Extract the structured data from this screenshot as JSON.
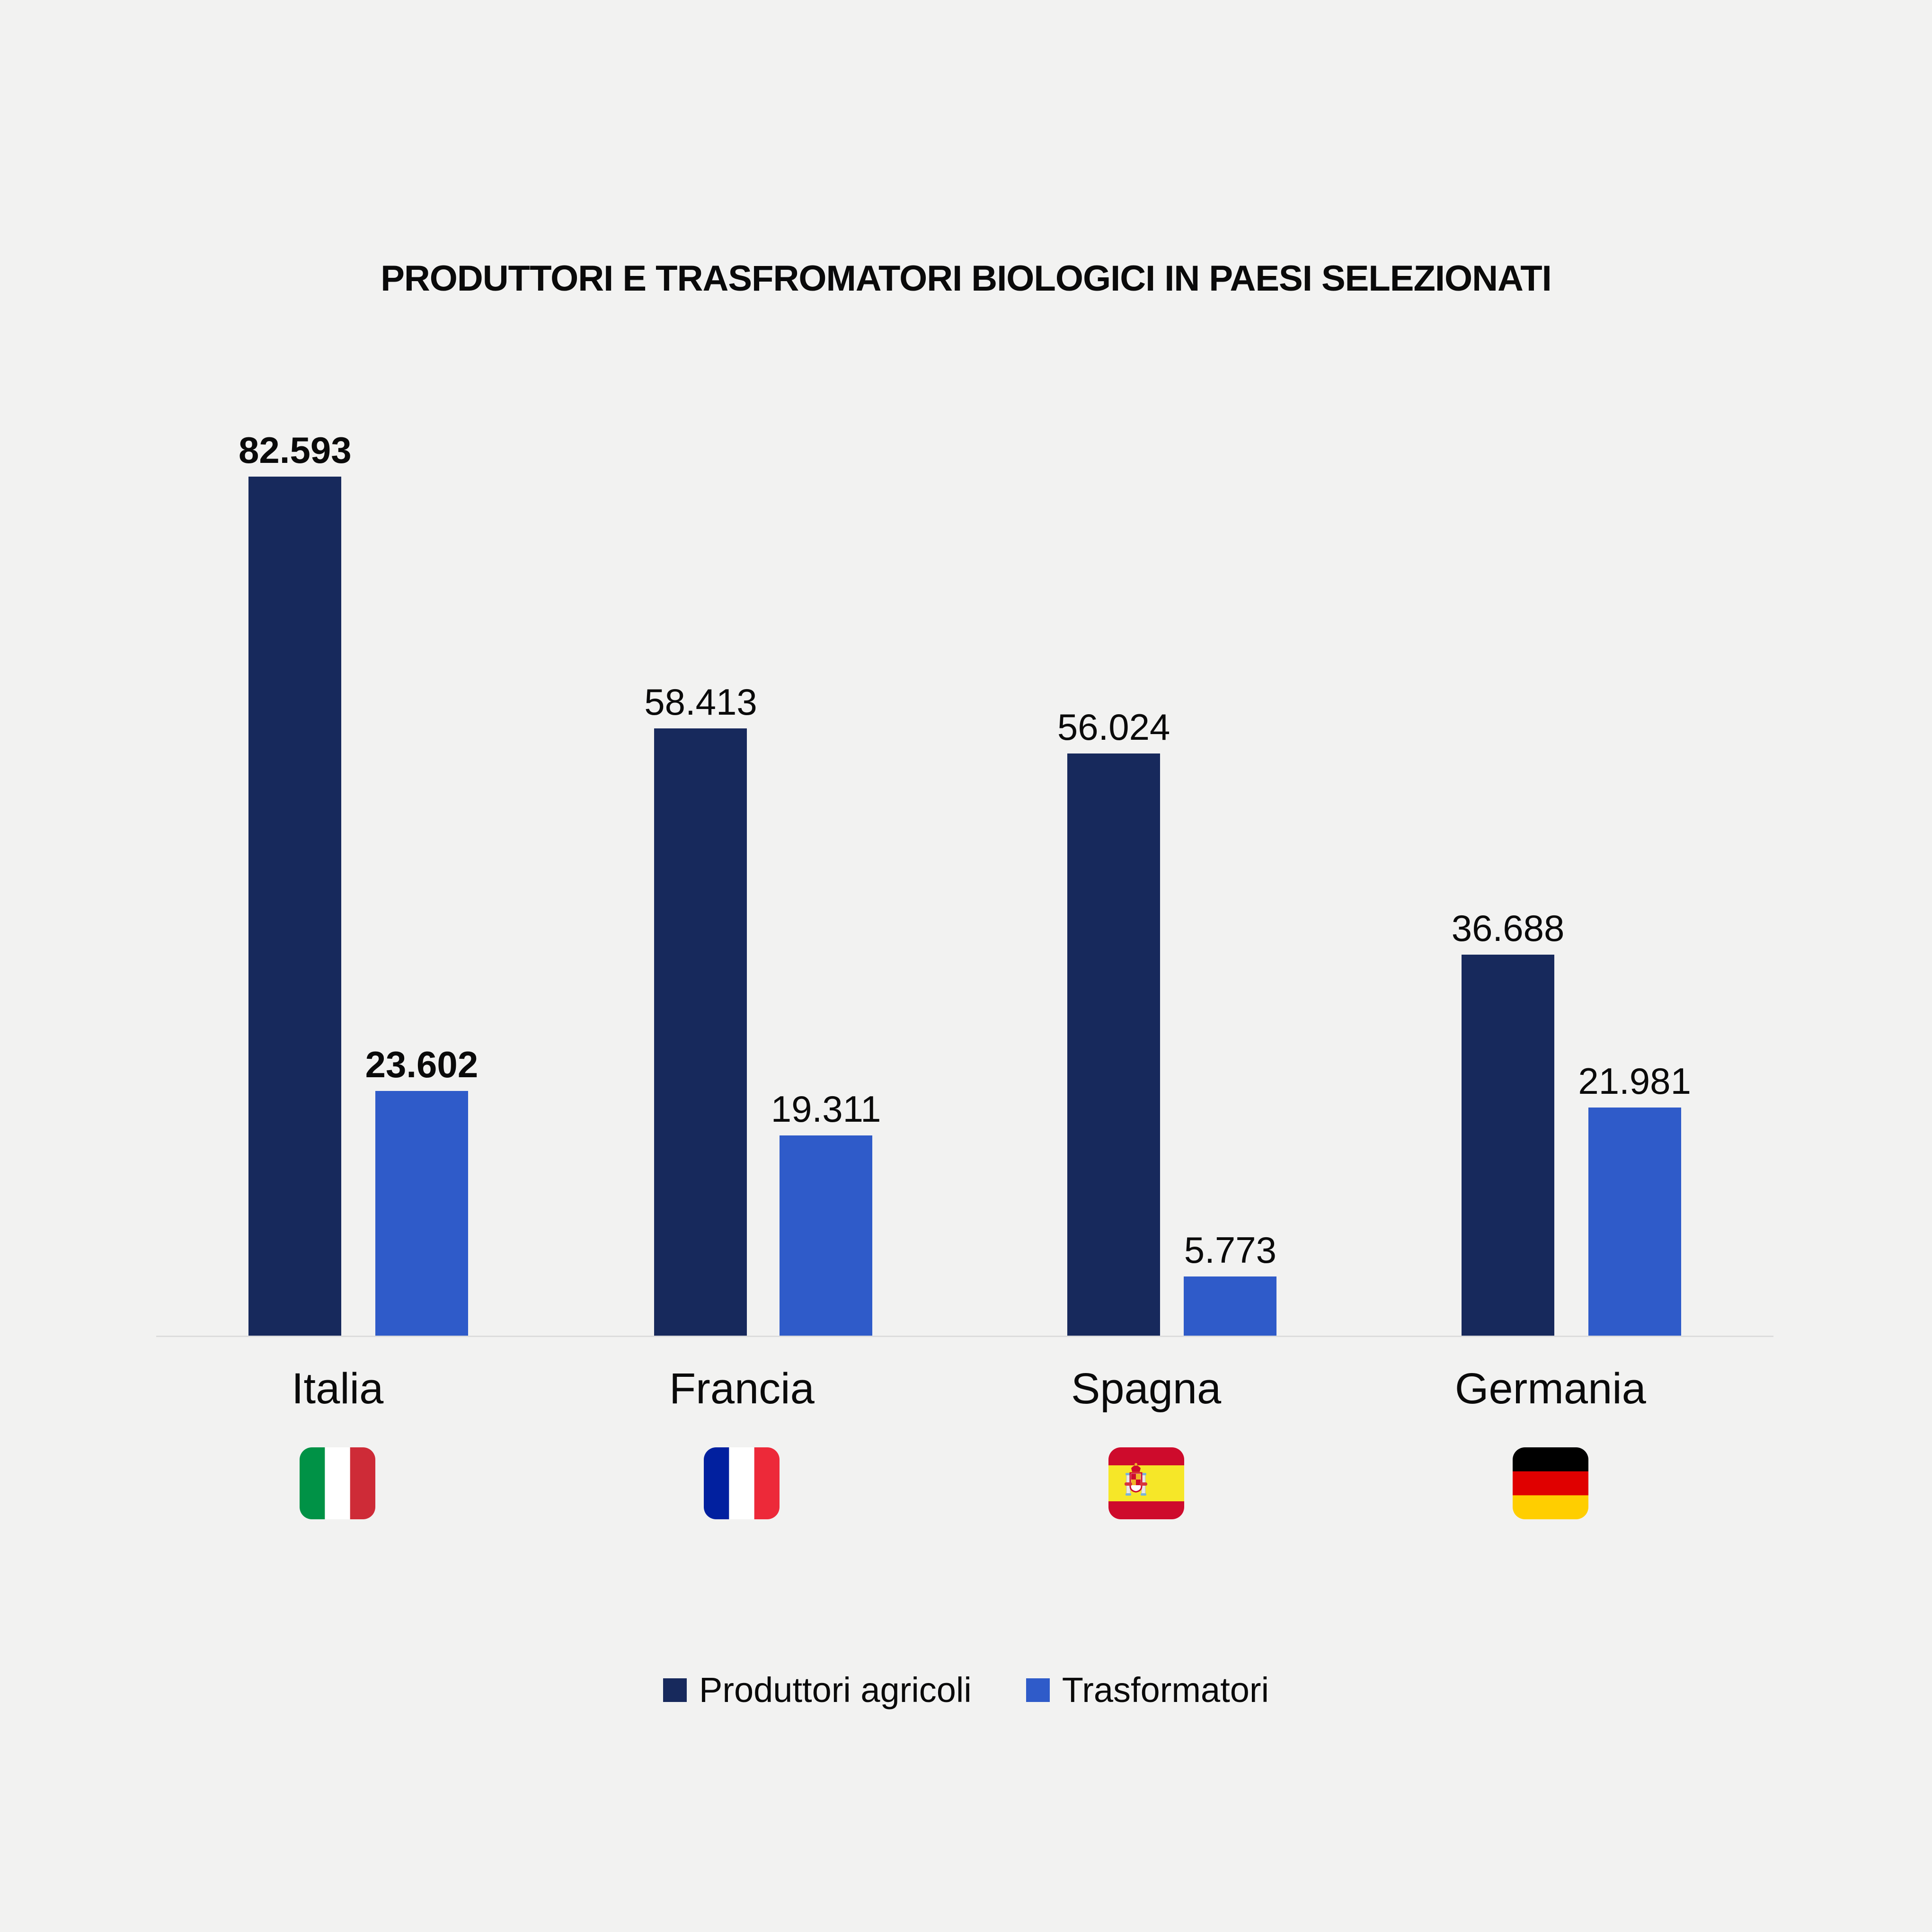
{
  "title": "PRODUTTORI E TRASFROMATORI BIOLOGICI IN PAESI SELEZIONATI",
  "background_color": "#f2f2f1",
  "baseline_color": "#dcdcdc",
  "text_color": "#0a0a0a",
  "chart_data": {
    "type": "bar",
    "title": "PRODUTTORI E TRASFROMATORI BIOLOGICI IN PAESI SELEZIONATI",
    "categories": [
      "Italia",
      "Francia",
      "Spagna",
      "Germania"
    ],
    "series": [
      {
        "name": "Produttori agricoli",
        "color": "#17295c",
        "values": [
          82593,
          58413,
          56024,
          36688
        ],
        "labels": [
          "82.593",
          "58.413",
          "56.024",
          "36.688"
        ]
      },
      {
        "name": "Trasformatori",
        "color": "#2f5bc9",
        "values": [
          23602,
          19311,
          5773,
          21981
        ],
        "labels": [
          "23.602",
          "19.311",
          "5.773",
          "21.981"
        ]
      }
    ],
    "emphasized_category": "Italia",
    "xlabel": "",
    "ylabel": "",
    "ylim": [
      0,
      82593
    ],
    "grid": false,
    "legend_position": "bottom",
    "value_labels_shown": true
  },
  "flags": [
    {
      "country": "Italia",
      "layout": "vertical",
      "stripes": [
        "#009246",
        "#ffffff",
        "#ce2b37"
      ],
      "ratios": [
        0.3333,
        0.3334,
        0.3333
      ],
      "emblem": false
    },
    {
      "country": "Francia",
      "layout": "vertical",
      "stripes": [
        "#01209f",
        "#ffffff",
        "#ed2939"
      ],
      "ratios": [
        0.3333,
        0.3334,
        0.3333
      ],
      "emblem": false
    },
    {
      "country": "Spagna",
      "layout": "horizontal",
      "stripes": [
        "#ce0b2c",
        "#f6e728",
        "#ce0b2c"
      ],
      "ratios": [
        0.25,
        0.5,
        0.25
      ],
      "emblem": true
    },
    {
      "country": "Germania",
      "layout": "horizontal",
      "stripes": [
        "#000000",
        "#e00000",
        "#ffce00"
      ],
      "ratios": [
        0.3333,
        0.3334,
        0.3333
      ],
      "emblem": false
    }
  ],
  "flag_emblem_colors": {
    "crown_red": "#ce0b2c",
    "pillar_gray": "#e9e9e9",
    "pillar_cap_blue": "#7ab4d8",
    "shield_yellow": "#f0b429",
    "shield_white": "#ffffff",
    "ribbon_red": "#d8343c"
  }
}
